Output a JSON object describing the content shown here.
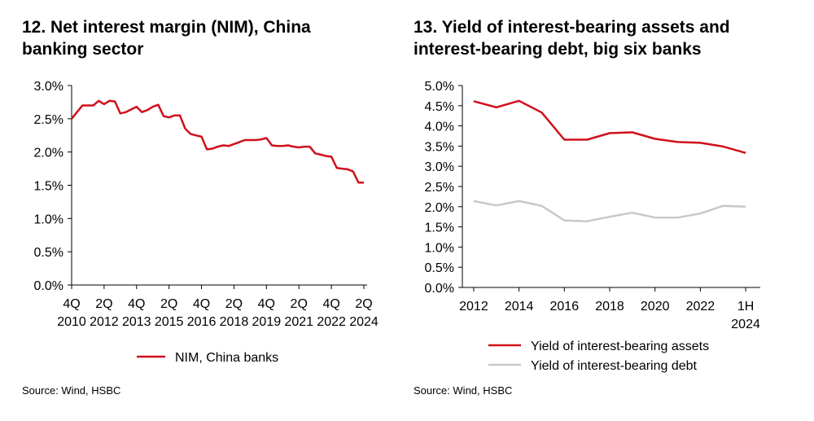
{
  "colors": {
    "red": "#d0101b",
    "grey": "#c8c8c8",
    "axis": "#000000"
  },
  "chart_data": [
    {
      "type": "line",
      "title_lines": [
        "12. Net interest margin (NIM), China",
        "banking sector"
      ],
      "source": "Source: Wind, HSBC",
      "ylim": [
        0,
        3.0
      ],
      "y_ticks": [
        0,
        0.5,
        1.0,
        1.5,
        2.0,
        2.5,
        3.0
      ],
      "y_tick_labels": [
        "0.0%",
        "0.5%",
        "1.0%",
        "1.5%",
        "2.0%",
        "2.5%",
        "3.0%"
      ],
      "x_tick_labels": [
        {
          "line1": "4Q",
          "line2": "2010"
        },
        {
          "line1": "2Q",
          "line2": "2012"
        },
        {
          "line1": "4Q",
          "line2": "2013"
        },
        {
          "line1": "2Q",
          "line2": "2015"
        },
        {
          "line1": "4Q",
          "line2": "2016"
        },
        {
          "line1": "2Q",
          "line2": "2018"
        },
        {
          "line1": "4Q",
          "line2": "2019"
        },
        {
          "line1": "2Q",
          "line2": "2021"
        },
        {
          "line1": "4Q",
          "line2": "2022"
        },
        {
          "line1": "2Q",
          "line2": "2024"
        }
      ],
      "x_tick_index": [
        0,
        6,
        12,
        18,
        24,
        30,
        36,
        42,
        48,
        54
      ],
      "series": [
        {
          "name": "NIM, China banks",
          "color": "#d0101b",
          "values": [
            2.5,
            2.6,
            2.7,
            2.7,
            2.7,
            2.77,
            2.72,
            2.77,
            2.76,
            2.58,
            2.6,
            2.64,
            2.68,
            2.6,
            2.63,
            2.68,
            2.71,
            2.54,
            2.52,
            2.55,
            2.55,
            2.35,
            2.27,
            2.25,
            2.23,
            2.04,
            2.05,
            2.08,
            2.1,
            2.09,
            2.12,
            2.15,
            2.18,
            2.18,
            2.18,
            2.19,
            2.21,
            2.1,
            2.09,
            2.09,
            2.1,
            2.08,
            2.07,
            2.08,
            2.08,
            1.98,
            1.96,
            1.94,
            1.93,
            1.76,
            1.75,
            1.74,
            1.71,
            1.54,
            1.54
          ]
        }
      ]
    },
    {
      "type": "line",
      "title_lines": [
        "13. Yield of interest-bearing assets and",
        "interest-bearing debt, big six banks"
      ],
      "source": "Source: Wind, HSBC",
      "ylim": [
        0,
        5.0
      ],
      "y_ticks": [
        0,
        0.5,
        1.0,
        1.5,
        2.0,
        2.5,
        3.0,
        3.5,
        4.0,
        4.5,
        5.0
      ],
      "y_tick_labels": [
        "0.0%",
        "0.5%",
        "1.0%",
        "1.5%",
        "2.0%",
        "2.5%",
        "3.0%",
        "3.5%",
        "4.0%",
        "4.5%",
        "5.0%"
      ],
      "categories": [
        "2012",
        "2013",
        "2014",
        "2015",
        "2016",
        "2017",
        "2018",
        "2019",
        "2020",
        "2021",
        "2022",
        "2023",
        "1H 2024"
      ],
      "x_tick_labels": [
        {
          "line1": "2012",
          "line2": ""
        },
        {
          "line1": "2014",
          "line2": ""
        },
        {
          "line1": "2016",
          "line2": ""
        },
        {
          "line1": "2018",
          "line2": ""
        },
        {
          "line1": "2020",
          "line2": ""
        },
        {
          "line1": "2022",
          "line2": ""
        },
        {
          "line1": "1H",
          "line2": "2024"
        }
      ],
      "x_tick_index": [
        0,
        2,
        4,
        6,
        8,
        10,
        12
      ],
      "series": [
        {
          "name": "Yield of interest-bearing assets",
          "color": "#d0101b",
          "values": [
            4.61,
            4.46,
            4.62,
            4.33,
            3.66,
            3.66,
            3.82,
            3.84,
            3.68,
            3.6,
            3.58,
            3.49,
            3.33
          ]
        },
        {
          "name": "Yield of interest-bearing debt",
          "color": "#c8c8c8",
          "values": [
            2.14,
            2.03,
            2.14,
            2.02,
            1.66,
            1.64,
            1.75,
            1.85,
            1.73,
            1.73,
            1.83,
            2.02,
            2.0
          ]
        }
      ]
    }
  ]
}
